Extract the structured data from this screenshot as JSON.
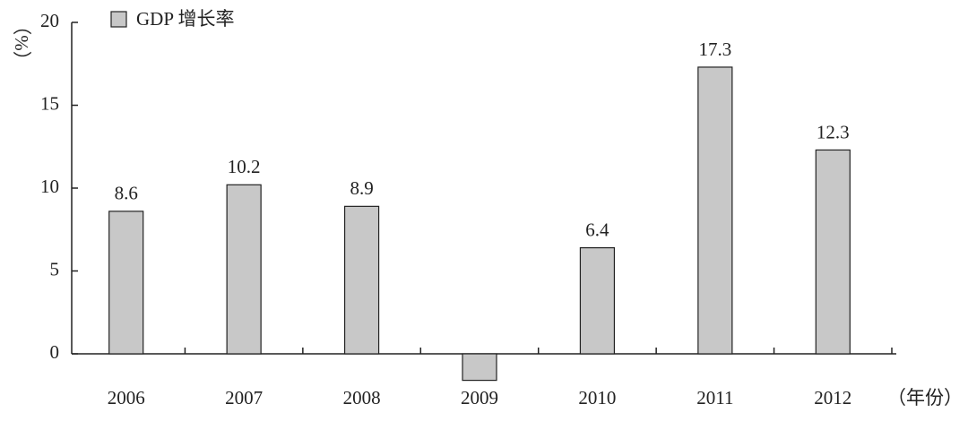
{
  "chart_data": {
    "type": "bar",
    "y_label": "（%）",
    "x_label": "（年份）",
    "categories": [
      "2006",
      "2007",
      "2008",
      "2009",
      "2010",
      "2011",
      "2012"
    ],
    "series": [
      {
        "name": "GDP 增长率",
        "color": "#c8c8c8",
        "values": [
          8.6,
          10.2,
          8.9,
          -1.6,
          6.4,
          17.3,
          12.3
        ],
        "value_labels": [
          "8.6",
          "10.2",
          "8.9",
          null,
          "6.4",
          "17.3",
          "12.3"
        ]
      }
    ],
    "ylim": [
      0,
      20
    ],
    "yticks": [
      0,
      5,
      10,
      15,
      20
    ],
    "legend": "top-left"
  }
}
